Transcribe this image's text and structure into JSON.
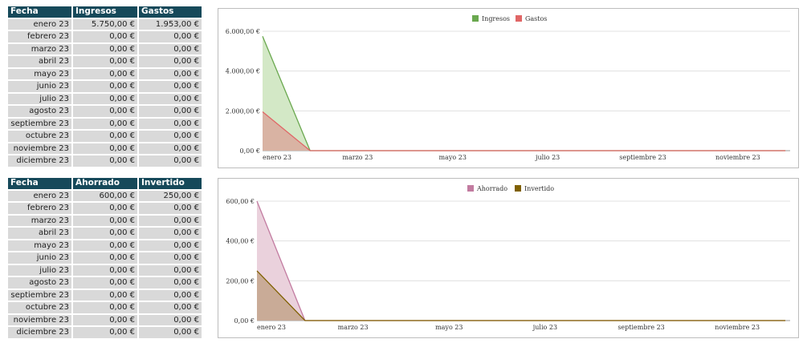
{
  "table1": {
    "headers": [
      "Fecha",
      "Ingresos",
      "Gastos"
    ],
    "rows": [
      [
        "enero 23",
        "5.750,00 €",
        "1.953,00 €"
      ],
      [
        "febrero 23",
        "0,00 €",
        "0,00 €"
      ],
      [
        "marzo 23",
        "0,00 €",
        "0,00 €"
      ],
      [
        "abril 23",
        "0,00 €",
        "0,00 €"
      ],
      [
        "mayo 23",
        "0,00 €",
        "0,00 €"
      ],
      [
        "junio 23",
        "0,00 €",
        "0,00 €"
      ],
      [
        "julio 23",
        "0,00 €",
        "0,00 €"
      ],
      [
        "agosto 23",
        "0,00 €",
        "0,00 €"
      ],
      [
        "septiembre 23",
        "0,00 €",
        "0,00 €"
      ],
      [
        "octubre 23",
        "0,00 €",
        "0,00 €"
      ],
      [
        "noviembre 23",
        "0,00 €",
        "0,00 €"
      ],
      [
        "diciembre 23",
        "0,00 €",
        "0,00 €"
      ]
    ]
  },
  "table2": {
    "headers": [
      "Fecha",
      "Ahorrado",
      "Invertido"
    ],
    "rows": [
      [
        "enero 23",
        "600,00 €",
        "250,00 €"
      ],
      [
        "febrero 23",
        "0,00 €",
        "0,00 €"
      ],
      [
        "marzo 23",
        "0,00 €",
        "0,00 €"
      ],
      [
        "abril 23",
        "0,00 €",
        "0,00 €"
      ],
      [
        "mayo 23",
        "0,00 €",
        "0,00 €"
      ],
      [
        "junio 23",
        "0,00 €",
        "0,00 €"
      ],
      [
        "julio 23",
        "0,00 €",
        "0,00 €"
      ],
      [
        "agosto 23",
        "0,00 €",
        "0,00 €"
      ],
      [
        "septiembre 23",
        "0,00 €",
        "0,00 €"
      ],
      [
        "octubre 23",
        "0,00 €",
        "0,00 €"
      ],
      [
        "noviembre 23",
        "0,00 €",
        "0,00 €"
      ],
      [
        "diciembre 23",
        "0,00 €",
        "0,00 €"
      ]
    ]
  },
  "chart_data": [
    {
      "type": "area",
      "categories": [
        "enero 23",
        "febrero 23",
        "marzo 23",
        "abril 23",
        "mayo 23",
        "junio 23",
        "julio 23",
        "agosto 23",
        "septiembre 23",
        "octubre 23",
        "noviembre 23",
        "diciembre 23"
      ],
      "x_tick_labels": [
        "enero 23",
        "marzo 23",
        "mayo 23",
        "julio 23",
        "septiembre 23",
        "noviembre 23"
      ],
      "y_tick_labels": [
        "0,00 €",
        "2.000,00 €",
        "4.000,00 €",
        "6.000,00 €"
      ],
      "ylim": [
        0,
        6000
      ],
      "y_ticks": [
        0,
        2000,
        4000,
        6000
      ],
      "legend_position": "top-center",
      "grid": true,
      "series": [
        {
          "name": "Ingresos",
          "values": [
            5750,
            0,
            0,
            0,
            0,
            0,
            0,
            0,
            0,
            0,
            0,
            0
          ],
          "line_color": "#6aa84f",
          "fill_color": "#d3e8c6"
        },
        {
          "name": "Gastos",
          "values": [
            1953,
            0,
            0,
            0,
            0,
            0,
            0,
            0,
            0,
            0,
            0,
            0
          ],
          "line_color": "#e06666",
          "fill_color": "#d9b3a3"
        }
      ]
    },
    {
      "type": "area",
      "categories": [
        "enero 23",
        "febrero 23",
        "marzo 23",
        "abril 23",
        "mayo 23",
        "junio 23",
        "julio 23",
        "agosto 23",
        "septiembre 23",
        "octubre 23",
        "noviembre 23",
        "diciembre 23"
      ],
      "x_tick_labels": [
        "enero 23",
        "marzo 23",
        "mayo 23",
        "julio 23",
        "septiembre 23",
        "noviembre 23"
      ],
      "y_tick_labels": [
        "0,00 €",
        "200,00 €",
        "400,00 €",
        "600,00 €"
      ],
      "ylim": [
        0,
        600
      ],
      "y_ticks": [
        0,
        200,
        400,
        600
      ],
      "legend_position": "top-center",
      "grid": true,
      "series": [
        {
          "name": "Ahorrado",
          "values": [
            600,
            0,
            0,
            0,
            0,
            0,
            0,
            0,
            0,
            0,
            0,
            0
          ],
          "line_color": "#c27ba0",
          "fill_color": "#ead1dc"
        },
        {
          "name": "Invertido",
          "values": [
            250,
            0,
            0,
            0,
            0,
            0,
            0,
            0,
            0,
            0,
            0,
            0
          ],
          "line_color": "#7f6000",
          "fill_color": "#c9ab97"
        }
      ]
    }
  ]
}
